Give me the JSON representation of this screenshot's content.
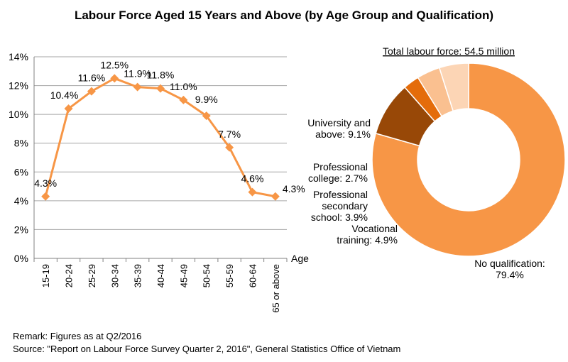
{
  "title": "Labour Force Aged 15 Years and Above (by Age Group and Qualification)",
  "remark": "Remark: Figures as at Q2/2016",
  "source": "Source: \"Report on Labour Force Survey Quarter 2, 2016\", General Statistics Office of Vietnam",
  "colors": {
    "line": "#F79646",
    "grid": "#A6A6A6",
    "axis": "#808080"
  },
  "chart_data": [
    {
      "type": "line",
      "title": "",
      "xlabel": "Age",
      "ylabel": "",
      "ylim": [
        0,
        14
      ],
      "yticks": [
        "0%",
        "2%",
        "4%",
        "6%",
        "8%",
        "10%",
        "12%",
        "14%"
      ],
      "categories": [
        "15-19",
        "20-24",
        "25-29",
        "30-34",
        "35-39",
        "40-44",
        "45-49",
        "50-54",
        "55-59",
        "60-64",
        "65 or above"
      ],
      "values": [
        4.3,
        10.4,
        11.6,
        12.5,
        11.9,
        11.8,
        11.0,
        9.9,
        7.7,
        4.6,
        4.3
      ],
      "data_labels": [
        "4.3%",
        "10.4%",
        "11.6%",
        "12.5%",
        "11.9%",
        "11.8%",
        "11.0%",
        "9.9%",
        "7.7%",
        "4.6%",
        "4.3%"
      ],
      "grid": true
    },
    {
      "type": "pie",
      "style": "donut",
      "title": "Total labour force: 54.5 million",
      "slices": [
        {
          "label_lines": [
            "No qualification:",
            "79.4%"
          ],
          "value": 79.4,
          "color": "#F79646"
        },
        {
          "label_lines": [
            "University and",
            "above: 9.1%"
          ],
          "value": 9.1,
          "color": "#984807"
        },
        {
          "label_lines": [
            "Professional",
            "college: 2.7%"
          ],
          "value": 2.7,
          "color": "#E46C0A"
        },
        {
          "label_lines": [
            "Professional",
            "secondary",
            "school: 3.9%"
          ],
          "value": 3.9,
          "color": "#FAC090"
        },
        {
          "label_lines": [
            "Vocational",
            "training:  4.9%"
          ],
          "value": 4.9,
          "color": "#FCD5B5"
        }
      ]
    }
  ]
}
